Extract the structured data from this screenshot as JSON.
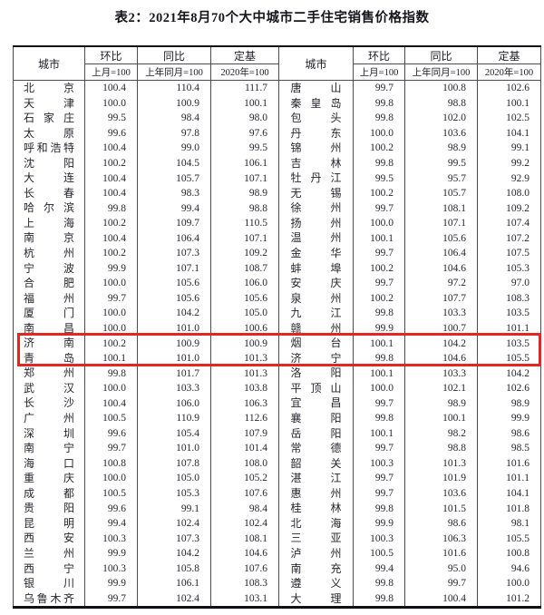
{
  "title": "表2：2021年8月70个大中城市二手住宅销售价格指数",
  "header": {
    "city": "城市",
    "mom": "环比",
    "mom_base": "上月=100",
    "yoy": "同比",
    "yoy_base": "上年同月=100",
    "fixed": "定基",
    "fixed_base": "2020年=100"
  },
  "left_rows": [
    [
      "北京",
      "100.4",
      "110.4",
      "111.7"
    ],
    [
      "天津",
      "100.0",
      "100.9",
      "100.1"
    ],
    [
      "石家庄",
      "99.5",
      "98.4",
      "98.0"
    ],
    [
      "太原",
      "99.6",
      "97.8",
      "97.6"
    ],
    [
      "呼和浩特",
      "100.4",
      "99.0",
      "99.5"
    ],
    [
      "沈阳",
      "100.2",
      "104.5",
      "106.1"
    ],
    [
      "大连",
      "100.4",
      "105.7",
      "107.1"
    ],
    [
      "长春",
      "100.4",
      "98.3",
      "98.9"
    ],
    [
      "哈尔滨",
      "99.8",
      "99.4",
      "98.8"
    ],
    [
      "上海",
      "100.2",
      "109.7",
      "110.5"
    ],
    [
      "南京",
      "100.4",
      "106.4",
      "107.1"
    ],
    [
      "杭州",
      "100.2",
      "107.3",
      "109.2"
    ],
    [
      "宁波",
      "99.9",
      "107.1",
      "108.7"
    ],
    [
      "合肥",
      "100.0",
      "105.6",
      "106.0"
    ],
    [
      "福州",
      "99.7",
      "105.6",
      "105.6"
    ],
    [
      "厦门",
      "100.0",
      "104.2",
      "105.0"
    ],
    [
      "南昌",
      "100.0",
      "101.0",
      "100.6"
    ],
    [
      "济南",
      "100.2",
      "100.9",
      "100.9"
    ],
    [
      "青岛",
      "100.1",
      "101.0",
      "101.3"
    ],
    [
      "郑州",
      "99.8",
      "101.7",
      "101.3"
    ],
    [
      "武汉",
      "100.0",
      "103.3",
      "103.8"
    ],
    [
      "长沙",
      "100.4",
      "106.0",
      "106.3"
    ],
    [
      "广州",
      "100.5",
      "110.9",
      "112.6"
    ],
    [
      "深圳",
      "99.6",
      "105.4",
      "107.9"
    ],
    [
      "南宁",
      "99.7",
      "101.0",
      "101.4"
    ],
    [
      "海口",
      "100.8",
      "107.8",
      "108.0"
    ],
    [
      "重庆",
      "100.0",
      "105.0",
      "105.2"
    ],
    [
      "成都",
      "100.5",
      "105.3",
      "107.6"
    ],
    [
      "贵阳",
      "99.6",
      "99.1",
      "98.4"
    ],
    [
      "昆明",
      "99.4",
      "102.4",
      "102.4"
    ],
    [
      "西安",
      "100.3",
      "107.3",
      "108.1"
    ],
    [
      "兰州",
      "99.9",
      "104.2",
      "104.6"
    ],
    [
      "西宁",
      "100.3",
      "105.8",
      "107.6"
    ],
    [
      "银川",
      "99.9",
      "106.1",
      "108.3"
    ],
    [
      "乌鲁木齐",
      "99.7",
      "102.4",
      "103.1"
    ]
  ],
  "right_rows": [
    [
      "唐山",
      "99.7",
      "100.8",
      "102.6"
    ],
    [
      "秦皇岛",
      "99.8",
      "98.8",
      "100.1"
    ],
    [
      "包头",
      "99.8",
      "102.0",
      "102.5"
    ],
    [
      "丹东",
      "100.0",
      "103.6",
      "104.1"
    ],
    [
      "锦州",
      "100.2",
      "98.9",
      "99.1"
    ],
    [
      "吉林",
      "99.8",
      "99.5",
      "99.2"
    ],
    [
      "牡丹江",
      "99.5",
      "95.7",
      "92.9"
    ],
    [
      "无锡",
      "100.2",
      "105.7",
      "108.0"
    ],
    [
      "徐州",
      "99.7",
      "108.1",
      "109.2"
    ],
    [
      "扬州",
      "100.0",
      "107.1",
      "107.4"
    ],
    [
      "温州",
      "100.1",
      "105.6",
      "107.2"
    ],
    [
      "金华",
      "99.7",
      "106.4",
      "107.5"
    ],
    [
      "蚌埠",
      "100.2",
      "104.6",
      "105.3"
    ],
    [
      "安庆",
      "99.7",
      "97.2",
      "97.0"
    ],
    [
      "泉州",
      "100.2",
      "107.7",
      "108.3"
    ],
    [
      "九江",
      "99.8",
      "103.3",
      "103.5"
    ],
    [
      "赣州",
      "99.9",
      "100.7",
      "101.1"
    ],
    [
      "烟台",
      "100.1",
      "104.2",
      "103.5"
    ],
    [
      "济宁",
      "99.8",
      "104.6",
      "105.5"
    ],
    [
      "洛阳",
      "100.1",
      "103.3",
      "104.2"
    ],
    [
      "平顶山",
      "100.0",
      "102.1",
      "102.6"
    ],
    [
      "宜昌",
      "99.7",
      "98.9",
      "98.9"
    ],
    [
      "襄阳",
      "99.8",
      "100.1",
      "99.9"
    ],
    [
      "岳阳",
      "100.1",
      "98.2",
      "98.6"
    ],
    [
      "常德",
      "99.7",
      "98.8",
      "98.5"
    ],
    [
      "韶关",
      "100.3",
      "101.3",
      "101.6"
    ],
    [
      "湛江",
      "99.7",
      "101.9",
      "101.1"
    ],
    [
      "惠州",
      "99.7",
      "103.6",
      "104.1"
    ],
    [
      "桂林",
      "99.8",
      "101.5",
      "101.8"
    ],
    [
      "北海",
      "99.9",
      "98.6",
      "98.1"
    ],
    [
      "三亚",
      "100.3",
      "106.3",
      "105.5"
    ],
    [
      "泸州",
      "100.5",
      "101.6",
      "100.8"
    ],
    [
      "南充",
      "99.4",
      "95.0",
      "94.6"
    ],
    [
      "遵义",
      "99.8",
      "99.7",
      "100.0"
    ],
    [
      "大理",
      "99.8",
      "100.4",
      "101.2"
    ]
  ],
  "highlight": {
    "color": "#e42520",
    "left_cities": [
      "济南",
      "青岛"
    ],
    "right_cities": [
      "烟台",
      "济宁"
    ],
    "row_start_index": 17,
    "row_end_index": 18
  }
}
